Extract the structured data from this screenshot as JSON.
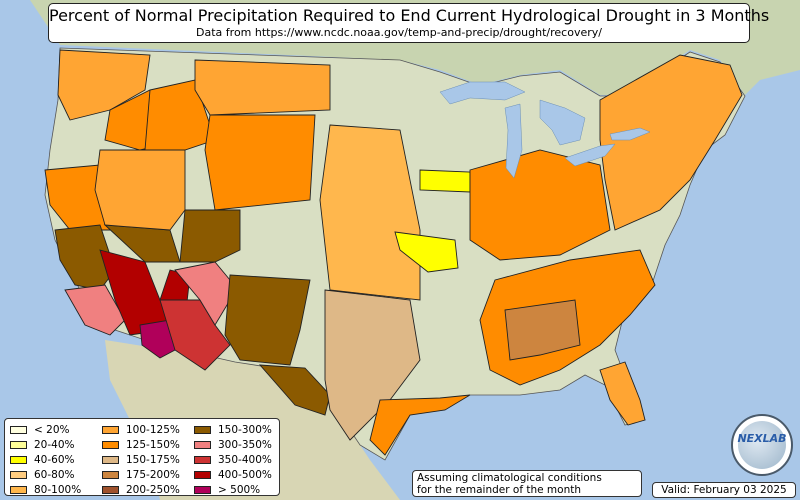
{
  "title": "Percent of Normal Precipitation Required to End Current Hydrological Drought in 3 Months",
  "subtitle": "Data from https://www.ncdc.noaa.gov/temp-and-precip/drought/recovery/",
  "legend": [
    {
      "label": "< 20%",
      "color": "#ffffe0"
    },
    {
      "label": "20-40%",
      "color": "#ffff99"
    },
    {
      "label": "40-60%",
      "color": "#ffff00"
    },
    {
      "label": "60-80%",
      "color": "#ffcc80"
    },
    {
      "label": "80-100%",
      "color": "#ffb74d"
    },
    {
      "label": "100-125%",
      "color": "#ffa533"
    },
    {
      "label": "125-150%",
      "color": "#ff8c00"
    },
    {
      "label": "150-175%",
      "color": "#deb887"
    },
    {
      "label": "175-200%",
      "color": "#cd853f"
    },
    {
      "label": "200-250%",
      "color": "#a0522d"
    },
    {
      "label": "150-300%",
      "color": "#8b5a00"
    },
    {
      "label": "300-350%",
      "color": "#f08080"
    },
    {
      "label": "350-400%",
      "color": "#cd3333"
    },
    {
      "label": "400-500%",
      "color": "#b20000"
    },
    {
      "label": "> 500%",
      "color": "#b0005a"
    }
  ],
  "note_line1": "Assuming climatological conditions",
  "note_line2": "for the remainder of the month",
  "valid": "Valid: February 03 2025",
  "logo_text": "NEXLAB",
  "colors": {
    "ocean": "#a9c7e8",
    "land": "#d9dfc3",
    "canada": "#c8d4b0",
    "mexico": "#d8d6b4",
    "lakes": "#a9c7e8"
  },
  "regions": [
    {
      "name": "pacific-northwest",
      "category": "100-125%"
    },
    {
      "name": "oregon-east",
      "category": "125-150%"
    },
    {
      "name": "california-north",
      "category": "125-150%"
    },
    {
      "name": "california-central-valley",
      "category": "150-300%"
    },
    {
      "name": "california-south",
      "category": "300-350%"
    },
    {
      "name": "southern-california-deserts",
      "category": "400-500%"
    },
    {
      "name": "arizona-southwest",
      "category": "> 500%"
    },
    {
      "name": "arizona-central",
      "category": "350-400%"
    },
    {
      "name": "arizona-east",
      "category": "300-350%"
    },
    {
      "name": "nevada-south",
      "category": "150-300%"
    },
    {
      "name": "nevada-north",
      "category": "100-125%"
    },
    {
      "name": "idaho",
      "category": "125-150%"
    },
    {
      "name": "montana",
      "category": "100-125%"
    },
    {
      "name": "wyoming-colorado",
      "category": "125-150%"
    },
    {
      "name": "utah",
      "category": "150-300%"
    },
    {
      "name": "new-mexico",
      "category": "150-300%"
    },
    {
      "name": "texas-west",
      "category": "150-300%"
    },
    {
      "name": "texas-central",
      "category": "150-175%"
    },
    {
      "name": "texas-gulf",
      "category": "125-150%"
    },
    {
      "name": "plains",
      "category": "80-100%"
    },
    {
      "name": "iowa",
      "category": "40-60%"
    },
    {
      "name": "missouri",
      "category": "40-60%"
    },
    {
      "name": "midwest",
      "category": "125-150%"
    },
    {
      "name": "southeast",
      "category": "125-150%"
    },
    {
      "name": "northeast",
      "category": "100-125%"
    },
    {
      "name": "gulf-interior",
      "category": "175-200%"
    },
    {
      "name": "florida",
      "category": "100-125%"
    }
  ]
}
